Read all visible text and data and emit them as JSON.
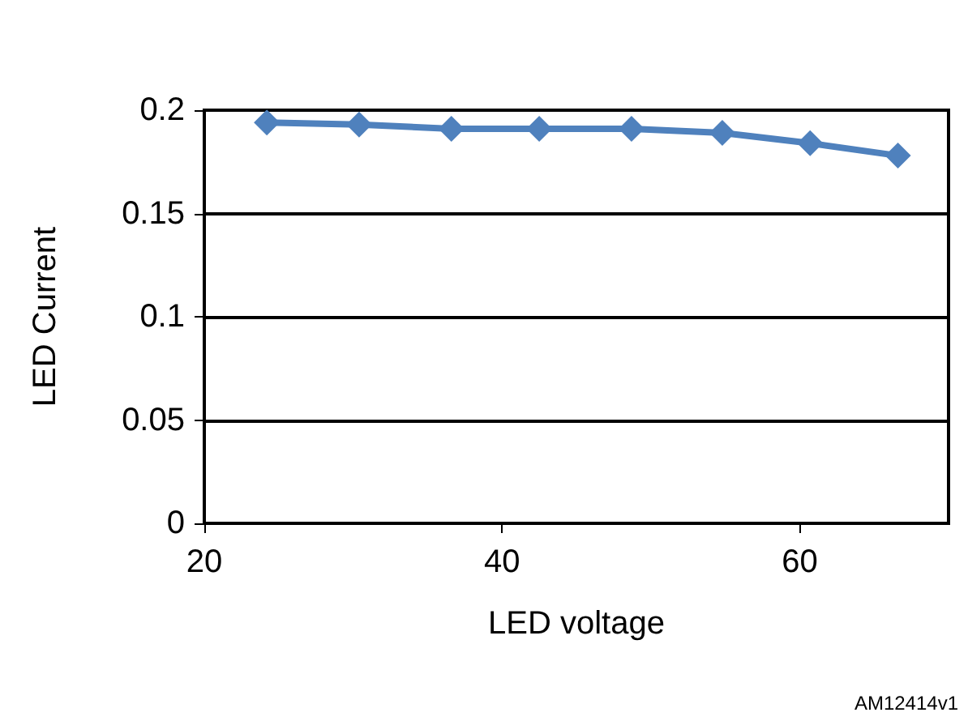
{
  "chart_data": {
    "type": "line",
    "xlabel": "LED voltage",
    "ylabel": "LED Current",
    "annotations": [
      "AM12414v1"
    ],
    "x": [
      24.2,
      30.4,
      36.6,
      42.5,
      48.7,
      54.8,
      60.7,
      66.6
    ],
    "series": [
      {
        "color": "#4f81bd",
        "values": [
          0.194,
          0.193,
          0.191,
          0.191,
          0.191,
          0.189,
          0.184,
          0.178
        ]
      }
    ],
    "xlim": [
      20,
      70
    ],
    "xticks": [
      20,
      40,
      60
    ],
    "ylim": [
      0,
      0.2
    ],
    "yticks": [
      0,
      0.05,
      0.1,
      0.15,
      0.2
    ],
    "grid": "y",
    "marker": "diamond",
    "line_style": "solid"
  }
}
